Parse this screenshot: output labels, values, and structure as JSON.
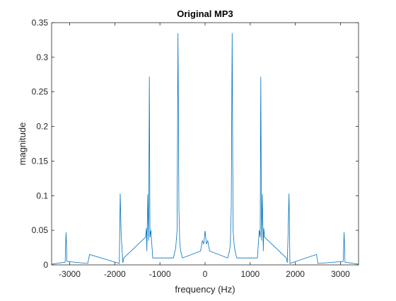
{
  "chart_data": {
    "type": "line",
    "title": "Original MP3",
    "xlabel": "frequency (Hz)",
    "ylabel": "magnitude",
    "xlim": [
      -3400,
      3400
    ],
    "ylim": [
      0,
      0.35
    ],
    "x_ticks": [
      -3000,
      -2000,
      -1000,
      0,
      1000,
      2000,
      3000
    ],
    "x_tick_labels": [
      "-3000",
      "-2000",
      "-1000",
      "0",
      "1000",
      "2000",
      "3000"
    ],
    "y_ticks": [
      0,
      0.05,
      0.1,
      0.15,
      0.2,
      0.25,
      0.3,
      0.35
    ],
    "y_tick_labels": [
      "0",
      "0.05",
      "0.1",
      "0.15",
      "0.2",
      "0.25",
      "0.3",
      "0.35"
    ],
    "grid": false,
    "line_color": "#0072BD",
    "series": [
      {
        "x": [
          -3400,
          -3100,
          -3080,
          -3060,
          -2600,
          -2560,
          -1900,
          -1880,
          -1860,
          -1820,
          -1800,
          -1320,
          -1300,
          -1290,
          -1270,
          -1250,
          -1235,
          -1220,
          -1200,
          -1180,
          -1160,
          -700,
          -650,
          -620,
          -600,
          -580,
          -560,
          -540,
          -500,
          -100,
          -60,
          -30,
          0,
          30,
          60,
          100,
          500,
          540,
          560,
          580,
          600,
          620,
          650,
          700,
          1160,
          1180,
          1200,
          1220,
          1235,
          1250,
          1270,
          1290,
          1300,
          1320,
          1800,
          1820,
          1840,
          1860,
          1880,
          2470,
          2500,
          3060,
          3080,
          3100,
          3400
        ],
        "y": [
          0.001,
          0.004,
          0.047,
          0.005,
          0.002,
          0.015,
          0.002,
          0.103,
          0.045,
          0.003,
          0.01,
          0.04,
          0.053,
          0.02,
          0.102,
          0.035,
          0.272,
          0.04,
          0.05,
          0.03,
          0.01,
          0.01,
          0.025,
          0.05,
          0.335,
          0.08,
          0.03,
          0.02,
          0.01,
          0.02,
          0.035,
          0.03,
          0.049,
          0.03,
          0.035,
          0.02,
          0.01,
          0.02,
          0.03,
          0.08,
          0.335,
          0.05,
          0.025,
          0.01,
          0.01,
          0.03,
          0.05,
          0.04,
          0.272,
          0.035,
          0.102,
          0.02,
          0.053,
          0.04,
          0.01,
          0.003,
          0.045,
          0.103,
          0.002,
          0.015,
          0.002,
          0.005,
          0.047,
          0.004,
          0.001
        ]
      }
    ]
  }
}
